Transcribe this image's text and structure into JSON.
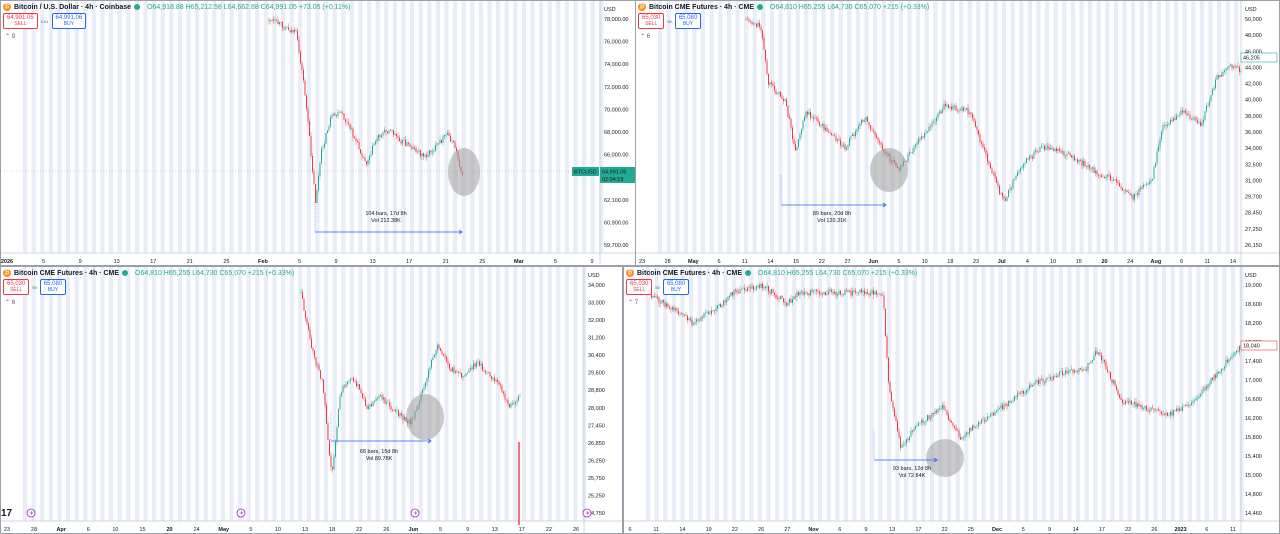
{
  "panels": [
    {
      "id": "p1",
      "symbol": "Bitcoin / U.S. Dollar · 4h · Coinbase",
      "ohlc": "O64,918.88 H65,212.58 L64,662.88 C64,991.05 +73.05 (+0.11%)",
      "sell": {
        "price": "64,991.05",
        "label": "SELL"
      },
      "spread": "0.01",
      "buy": {
        "price": "64,991.06",
        "label": "BUY"
      },
      "collapse_label": "⌃ 9",
      "currency": "USD",
      "price_ticks": [
        "78,000.00",
        "76,000.00",
        "74,000.00",
        "72,000.00",
        "70,000.00",
        "68,000.00",
        "66,000.00",
        "63,300.00",
        "62,100.00",
        "60,900.00",
        "59,700.00"
      ],
      "time_ticks": [
        "2026",
        "5",
        "9",
        "13",
        "17",
        "21",
        "25",
        "Feb",
        "5",
        "9",
        "13",
        "17",
        "21",
        "25",
        "Mar",
        "5",
        "9"
      ],
      "price_label": {
        "symbol": "BTCUSD",
        "price": "64,991.05",
        "countdown": "02:04:19"
      },
      "measure": {
        "line1": "104 bars, 17d 8h",
        "line2": "Vol 212.38K"
      }
    },
    {
      "id": "p2",
      "symbol": "Bitcoin CME Futures · 4h · CME",
      "ohlc": "O64,810 H65,255 L64,730 C65,070 +215 (+0.33%)",
      "sell": {
        "price": "65,030",
        "label": "SELL"
      },
      "spread": "50",
      "buy": {
        "price": "65,080",
        "label": "BUY"
      },
      "collapse_label": "⌃ 6",
      "currency": "USD",
      "price_ticks": [
        "50,000",
        "48,000",
        "46,000",
        "44,000",
        "42,000",
        "40,000",
        "38,000",
        "36,000",
        "34,000",
        "32,500",
        "31,000",
        "29,700",
        "28,450",
        "27,250",
        "26,150"
      ],
      "time_ticks": [
        "23",
        "28",
        "May",
        "6",
        "11",
        "14",
        "15",
        "22",
        "27",
        "Jun",
        "5",
        "10",
        "18",
        "23",
        "Jul",
        "4",
        "10",
        "15",
        "20",
        "24",
        "Aug",
        "6",
        "11",
        "14"
      ],
      "price_label": {
        "symbol": "",
        "price": "46,205",
        "countdown": ""
      },
      "measure": {
        "line1": "89 bars, 20d 8h",
        "line2": "Vol 120.31K"
      }
    },
    {
      "id": "p3",
      "symbol": "Bitcoin CME Futures · 4h · CME",
      "ohlc": "O64,810 H65,255 L64,730 C65,070 +215 (+0.33%)",
      "sell": {
        "price": "65,030",
        "label": "SELL"
      },
      "spread": "50",
      "buy": {
        "price": "65,080",
        "label": "BUY"
      },
      "collapse_label": "⌃ 6",
      "currency": "USD",
      "price_ticks": [
        "34,000",
        "33,000",
        "32,000",
        "31,200",
        "30,400",
        "29,600",
        "28,800",
        "28,000",
        "27,450",
        "26,850",
        "26,250",
        "25,750",
        "25,250",
        "24,750"
      ],
      "time_ticks": [
        "23",
        "28",
        "Apr",
        "6",
        "10",
        "15",
        "20",
        "24",
        "May",
        "5",
        "10",
        "13",
        "18",
        "22",
        "26",
        "Jun",
        "5",
        "9",
        "13",
        "17",
        "22",
        "26"
      ],
      "price_label": {
        "symbol": "",
        "price": "",
        "countdown": ""
      },
      "measure": {
        "line1": "68 bars, 15d 8h",
        "line2": "Vol 89.78K"
      },
      "logo_text": "17"
    },
    {
      "id": "p4",
      "symbol": "Bitcoin CME Futures · 4h · CME",
      "ohlc": "O64,810 H65,255 L64,730 C65,070 +215 (+0.33%)",
      "sell": {
        "price": "65,030",
        "label": "SELL"
      },
      "spread": "50",
      "buy": {
        "price": "65,080",
        "label": "BUY"
      },
      "collapse_label": "⌃ 7",
      "currency": "USD",
      "price_ticks": [
        "19,000",
        "18,600",
        "18,200",
        "17,800",
        "17,400",
        "17,000",
        "16,600",
        "16,200",
        "15,800",
        "15,400",
        "15,000",
        "14,800",
        "14,460"
      ],
      "time_ticks": [
        "6",
        "11",
        "14",
        "19",
        "22",
        "26",
        "27",
        "Nov",
        "6",
        "9",
        "13",
        "17",
        "22",
        "25",
        "Dec",
        "5",
        "9",
        "14",
        "17",
        "22",
        "26",
        "2023",
        "6",
        "11"
      ],
      "price_label": {
        "symbol": "",
        "price": "18,040",
        "countdown": ""
      },
      "measure": {
        "line1": "93 bars, 12d 8h",
        "line2": "Vol 72.84K"
      }
    }
  ],
  "colors": {
    "up": "#22ab94",
    "down": "#f23645",
    "measure": "#2962ff",
    "session_bg": "#e8edf7",
    "highlight": "#9e9e9e"
  }
}
